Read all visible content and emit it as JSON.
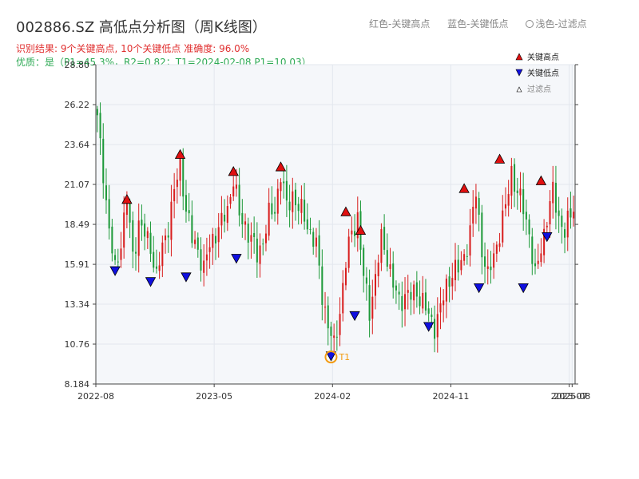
{
  "header": {
    "title": "002886.SZ 高低点分析图（周K线图）",
    "result": "识别结果: 9个关键高点, 10个关键低点   准确度: 96.0%",
    "quality": "优质：是（P1=45.3%，R2=0.82；T1=2024-02-08 P1=10.03）"
  },
  "top_legend": {
    "red": "红色-关键高点",
    "blue": "蓝色-关键低点",
    "light": "浅色-过滤点"
  },
  "colors": {
    "up": "#d81e1e",
    "down": "#1e9a3a",
    "high_marker": "#e01010",
    "low_marker": "#1010e0",
    "t1_ring": "#f39c12",
    "plot_bg": "#f5f7fa"
  },
  "chart_data": {
    "type": "candlestick",
    "ylim": [
      8.184,
      28.8
    ],
    "yticks": [
      "8.184",
      "10.76",
      "13.34",
      "15.91",
      "18.49",
      "21.07",
      "23.64",
      "26.22",
      "28.80"
    ],
    "xticks": [
      {
        "label": "2022-08",
        "t": 0
      },
      {
        "label": "2023-05",
        "t": 40
      },
      {
        "label": "2024-02",
        "t": 80
      },
      {
        "label": "2024-11",
        "t": 120
      },
      {
        "label": "2025-07",
        "t": 160
      },
      {
        "label": "2025-08",
        "t": 161
      }
    ],
    "legend": {
      "high": "关键高点",
      "low": "关键低点",
      "filtered": "过滤点"
    },
    "anchors": [
      [
        0,
        25.2
      ],
      [
        2,
        22.0
      ],
      [
        4,
        18.0
      ],
      [
        6,
        15.5
      ],
      [
        8,
        17.5
      ],
      [
        10,
        20.0
      ],
      [
        12,
        16.5
      ],
      [
        14,
        18.5
      ],
      [
        16,
        17.8
      ],
      [
        18,
        17.2
      ],
      [
        20,
        15.0
      ],
      [
        22,
        17.0
      ],
      [
        24,
        18.5
      ],
      [
        26,
        20.5
      ],
      [
        28,
        22.5
      ],
      [
        30,
        19.5
      ],
      [
        32,
        17.5
      ],
      [
        34,
        17.0
      ],
      [
        36,
        15.5
      ],
      [
        38,
        17.2
      ],
      [
        40,
        18.0
      ],
      [
        42,
        18.5
      ],
      [
        44,
        19.5
      ],
      [
        46,
        21.5
      ],
      [
        48,
        19.0
      ],
      [
        50,
        18.5
      ],
      [
        52,
        17.5
      ],
      [
        54,
        16.5
      ],
      [
        56,
        17.5
      ],
      [
        58,
        19.0
      ],
      [
        60,
        19.5
      ],
      [
        62,
        21.8
      ],
      [
        64,
        19.5
      ],
      [
        66,
        20.5
      ],
      [
        68,
        19.5
      ],
      [
        70,
        19.0
      ],
      [
        72,
        18.0
      ],
      [
        74,
        17.0
      ],
      [
        76,
        14.0
      ],
      [
        78,
        12.0
      ],
      [
        80,
        10.5
      ],
      [
        82,
        13.0
      ],
      [
        84,
        16.0
      ],
      [
        86,
        18.0
      ],
      [
        88,
        19.0
      ],
      [
        90,
        15.0
      ],
      [
        92,
        13.0
      ],
      [
        94,
        15.0
      ],
      [
        96,
        17.5
      ],
      [
        98,
        16.5
      ],
      [
        100,
        14.5
      ],
      [
        102,
        13.5
      ],
      [
        104,
        14.0
      ],
      [
        106,
        13.8
      ],
      [
        108,
        14.2
      ],
      [
        110,
        13.5
      ],
      [
        112,
        12.5
      ],
      [
        114,
        12.0
      ],
      [
        116,
        13.0
      ],
      [
        118,
        14.5
      ],
      [
        120,
        15.5
      ],
      [
        122,
        15.5
      ],
      [
        124,
        16.5
      ],
      [
        126,
        18.0
      ],
      [
        128,
        20.5
      ],
      [
        130,
        17.0
      ],
      [
        132,
        15.0
      ],
      [
        134,
        16.5
      ],
      [
        136,
        18.0
      ],
      [
        138,
        19.5
      ],
      [
        140,
        22.0
      ],
      [
        142,
        20.5
      ],
      [
        144,
        19.5
      ],
      [
        146,
        18.0
      ],
      [
        148,
        15.0
      ],
      [
        150,
        17.0
      ],
      [
        152,
        19.0
      ],
      [
        154,
        20.5
      ],
      [
        156,
        19.0
      ],
      [
        158,
        18.0
      ],
      [
        160,
        19.0
      ],
      [
        162,
        20.5
      ]
    ],
    "key_highs": [
      [
        10,
        20.1
      ],
      [
        28,
        23.0
      ],
      [
        46,
        21.9
      ],
      [
        62,
        22.2
      ],
      [
        84,
        19.3
      ],
      [
        89,
        18.1
      ],
      [
        124,
        20.8
      ],
      [
        136,
        22.7
      ],
      [
        150,
        21.3
      ]
    ],
    "key_lows": [
      [
        6,
        15.5
      ],
      [
        18,
        14.8
      ],
      [
        30,
        15.1
      ],
      [
        47,
        16.3
      ],
      [
        79,
        10.0
      ],
      [
        87,
        12.6
      ],
      [
        112,
        11.9
      ],
      [
        129,
        14.4
      ],
      [
        144,
        14.4
      ],
      [
        152,
        17.7
      ]
    ],
    "t1": {
      "label": "T1",
      "t": 79,
      "price": 10.03
    }
  }
}
